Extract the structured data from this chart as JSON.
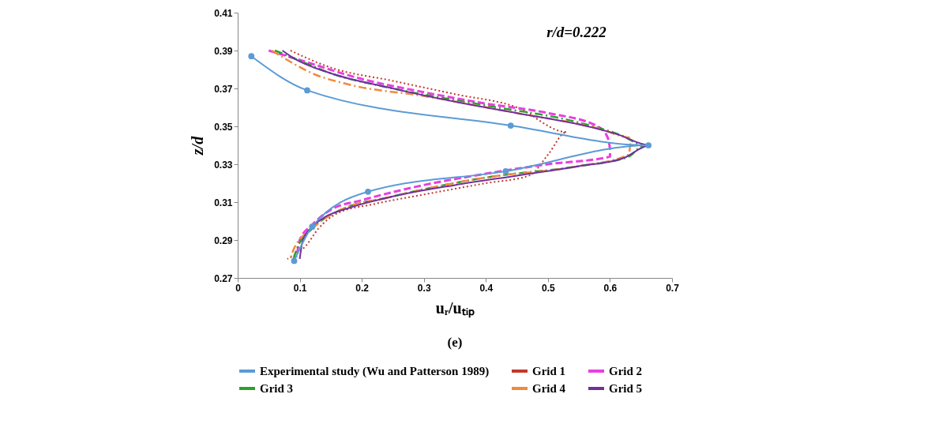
{
  "chart_data": {
    "type": "line",
    "xlabel": "uᵣ/uₜᵢₚ",
    "ylabel": "z/d",
    "xlim": [
      0,
      0.7
    ],
    "xticks": [
      0,
      0.1,
      0.2,
      0.3,
      0.4,
      0.5,
      0.6,
      0.7
    ],
    "ylim": [
      0.27,
      0.41
    ],
    "yticks": [
      0.27,
      0.29,
      0.31,
      0.33,
      0.35,
      0.37,
      0.39,
      0.41
    ],
    "grid": false,
    "legend": "bottom",
    "annotations": [
      "r/d=0.222",
      "(e)"
    ],
    "series": [
      {
        "name": "Experimental study (Wu and Patterson 1989)",
        "color": "#5b9bd5",
        "marker": "circle",
        "line_style": "solid",
        "x": [
          0.022,
          0.112,
          0.44,
          0.662,
          0.432,
          0.21,
          0.12,
          0.091
        ],
        "values": [
          0.387,
          0.369,
          0.3504,
          0.34,
          0.3263,
          0.3155,
          0.297,
          0.279
        ]
      },
      {
        "name": "Grid 1",
        "color": "#c0392b",
        "marker": "none",
        "line_style": "dotted",
        "x": [
          0.085,
          0.15,
          0.25,
          0.35,
          0.45,
          0.53,
          0.5,
          0.47,
          0.4,
          0.3,
          0.22,
          0.16,
          0.13,
          0.11,
          0.08
        ],
        "values": [
          0.39,
          0.381,
          0.374,
          0.367,
          0.36,
          0.347,
          0.335,
          0.324,
          0.32,
          0.314,
          0.309,
          0.304,
          0.296,
          0.287,
          0.28
        ]
      },
      {
        "name": "Grid 2",
        "color": "#e83fe0",
        "marker": "none",
        "line_style": "dashed",
        "x": [
          0.05,
          0.1,
          0.2,
          0.3,
          0.4,
          0.5,
          0.58,
          0.595,
          0.6,
          0.6,
          0.5,
          0.4,
          0.3,
          0.2,
          0.15,
          0.12,
          0.1,
          0.095
        ],
        "values": [
          0.39,
          0.385,
          0.375,
          0.368,
          0.362,
          0.357,
          0.35,
          0.345,
          0.338,
          0.334,
          0.33,
          0.325,
          0.319,
          0.311,
          0.306,
          0.298,
          0.29,
          0.281
        ]
      },
      {
        "name": "Grid 3",
        "color": "#2ca02c",
        "marker": "none",
        "line_style": "dashdot",
        "x": [
          0.06,
          0.09,
          0.15,
          0.25,
          0.4,
          0.55,
          0.62,
          0.655,
          0.63,
          0.55,
          0.4,
          0.25,
          0.16,
          0.12,
          0.095,
          0.09
        ],
        "values": [
          0.39,
          0.386,
          0.378,
          0.37,
          0.361,
          0.352,
          0.345,
          0.34,
          0.334,
          0.329,
          0.323,
          0.313,
          0.305,
          0.296,
          0.285,
          0.28
        ]
      },
      {
        "name": "Grid 4",
        "color": "#f08a3c",
        "marker": "none",
        "line_style": "dashdot",
        "x": [
          0.055,
          0.08,
          0.12,
          0.18,
          0.3,
          0.45,
          0.58,
          0.635,
          0.63,
          0.55,
          0.4,
          0.25,
          0.16,
          0.12,
          0.09,
          0.085
        ],
        "values": [
          0.39,
          0.385,
          0.378,
          0.372,
          0.366,
          0.357,
          0.349,
          0.344,
          0.335,
          0.329,
          0.323,
          0.313,
          0.305,
          0.296,
          0.285,
          0.28
        ]
      },
      {
        "name": "Grid 5",
        "color": "#7030a0",
        "marker": "none",
        "line_style": "solid",
        "x": [
          0.072,
          0.09,
          0.15,
          0.25,
          0.35,
          0.45,
          0.55,
          0.61,
          0.665,
          0.62,
          0.55,
          0.45,
          0.35,
          0.25,
          0.18,
          0.14,
          0.12,
          0.105,
          0.1
        ],
        "values": [
          0.39,
          0.386,
          0.378,
          0.37,
          0.363,
          0.357,
          0.351,
          0.346,
          0.34,
          0.333,
          0.329,
          0.324,
          0.319,
          0.313,
          0.307,
          0.302,
          0.297,
          0.29,
          0.28
        ]
      }
    ]
  }
}
